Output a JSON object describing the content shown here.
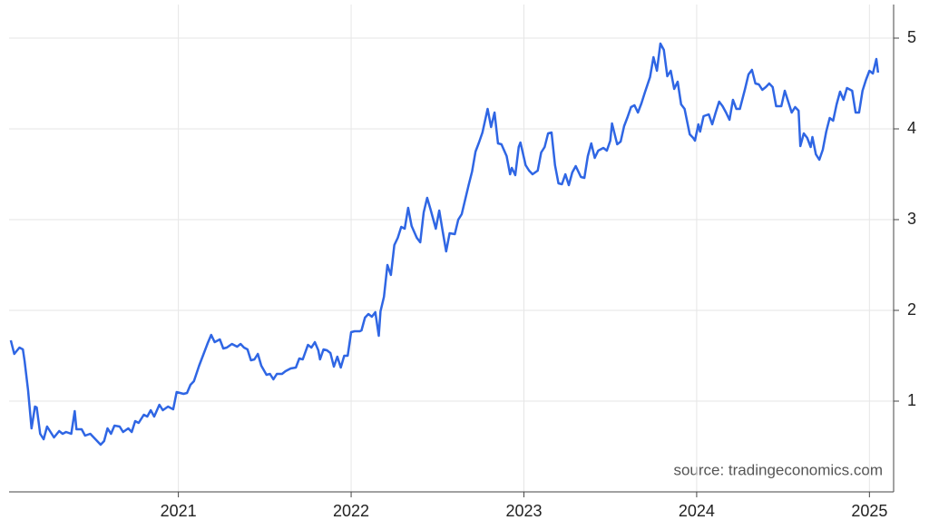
{
  "chart_data": {
    "type": "line",
    "source": "source: tradingeconomics.com",
    "color": "#2f66e4",
    "grid": true,
    "xlim": [
      2020.02,
      2025.14
    ],
    "xticks": [
      2021,
      2022,
      2023,
      2024,
      2025
    ],
    "ylim": [
      0,
      5.37
    ],
    "yticks": [
      1,
      2,
      3,
      4,
      5
    ],
    "x": [
      2020.03,
      2020.05,
      2020.08,
      2020.1,
      2020.11,
      2020.13,
      2020.15,
      2020.17,
      2020.18,
      2020.2,
      2020.22,
      2020.24,
      2020.28,
      2020.31,
      2020.33,
      2020.35,
      2020.38,
      2020.4,
      2020.41,
      2020.44,
      2020.46,
      2020.49,
      2020.52,
      2020.55,
      2020.57,
      2020.59,
      2020.61,
      2020.63,
      2020.66,
      2020.68,
      2020.71,
      2020.73,
      2020.75,
      2020.77,
      2020.8,
      2020.82,
      2020.84,
      2020.86,
      2020.89,
      2020.91,
      2020.94,
      2020.97,
      2020.99,
      2021.03,
      2021.05,
      2021.07,
      2021.09,
      2021.12,
      2021.15,
      2021.17,
      2021.19,
      2021.21,
      2021.24,
      2021.26,
      2021.28,
      2021.31,
      2021.34,
      2021.36,
      2021.38,
      2021.4,
      2021.42,
      2021.44,
      2021.46,
      2021.48,
      2021.51,
      2021.53,
      2021.55,
      2021.57,
      2021.6,
      2021.62,
      2021.65,
      2021.68,
      2021.7,
      2021.72,
      2021.75,
      2021.77,
      2021.79,
      2021.81,
      2021.82,
      2021.84,
      2021.86,
      2021.88,
      2021.9,
      2021.92,
      2021.94,
      2021.96,
      2021.98,
      2022.0,
      2022.02,
      2022.05,
      2022.06,
      2022.08,
      2022.1,
      2022.12,
      2022.14,
      2022.16,
      2022.17,
      2022.19,
      2022.21,
      2022.23,
      2022.25,
      2022.27,
      2022.29,
      2022.31,
      2022.33,
      2022.35,
      2022.38,
      2022.4,
      2022.42,
      2022.44,
      2022.46,
      2022.49,
      2022.51,
      2022.53,
      2022.55,
      2022.57,
      2022.6,
      2022.62,
      2022.64,
      2022.66,
      2022.68,
      2022.7,
      2022.72,
      2022.74,
      2022.76,
      2022.79,
      2022.81,
      2022.83,
      2022.85,
      2022.87,
      2022.9,
      2022.92,
      2022.93,
      2022.95,
      2022.97,
      2022.98,
      2023.01,
      2023.03,
      2023.05,
      2023.08,
      2023.1,
      2023.12,
      2023.14,
      2023.16,
      2023.18,
      2023.2,
      2023.22,
      2023.24,
      2023.26,
      2023.28,
      2023.3,
      2023.33,
      2023.35,
      2023.37,
      2023.39,
      2023.41,
      2023.43,
      2023.46,
      2023.48,
      2023.5,
      2023.51,
      2023.54,
      2023.56,
      2023.58,
      2023.6,
      2023.62,
      2023.64,
      2023.66,
      2023.68,
      2023.7,
      2023.73,
      2023.75,
      2023.77,
      2023.79,
      2023.81,
      2023.83,
      2023.85,
      2023.87,
      2023.89,
      2023.91,
      2023.93,
      2023.96,
      2023.98,
      2023.99,
      2024.01,
      2024.02,
      2024.04,
      2024.07,
      2024.09,
      2024.11,
      2024.13,
      2024.15,
      2024.17,
      2024.19,
      2024.21,
      2024.23,
      2024.25,
      2024.28,
      2024.3,
      2024.32,
      2024.34,
      2024.36,
      2024.38,
      2024.4,
      2024.42,
      2024.44,
      2024.46,
      2024.49,
      2024.51,
      2024.53,
      2024.55,
      2024.57,
      2024.59,
      2024.6,
      2024.62,
      2024.64,
      2024.66,
      2024.67,
      2024.69,
      2024.71,
      2024.73,
      2024.75,
      2024.77,
      2024.79,
      2024.81,
      2024.83,
      2024.85,
      2024.87,
      2024.9,
      2024.92,
      2024.94,
      2024.96,
      2024.98,
      2025.0,
      2025.02,
      2025.04,
      2025.05
    ],
    "values": [
      1.67,
      1.52,
      1.59,
      1.57,
      1.44,
      1.12,
      0.7,
      0.94,
      0.93,
      0.64,
      0.58,
      0.72,
      0.6,
      0.67,
      0.64,
      0.66,
      0.64,
      0.89,
      0.69,
      0.69,
      0.62,
      0.64,
      0.58,
      0.52,
      0.56,
      0.7,
      0.64,
      0.73,
      0.72,
      0.66,
      0.7,
      0.66,
      0.78,
      0.76,
      0.85,
      0.83,
      0.9,
      0.83,
      0.96,
      0.9,
      0.94,
      0.91,
      1.1,
      1.08,
      1.09,
      1.18,
      1.22,
      1.39,
      1.54,
      1.64,
      1.73,
      1.65,
      1.68,
      1.58,
      1.59,
      1.63,
      1.6,
      1.63,
      1.59,
      1.57,
      1.45,
      1.46,
      1.52,
      1.39,
      1.29,
      1.3,
      1.24,
      1.3,
      1.3,
      1.33,
      1.36,
      1.37,
      1.47,
      1.46,
      1.62,
      1.59,
      1.65,
      1.56,
      1.46,
      1.57,
      1.56,
      1.53,
      1.38,
      1.49,
      1.37,
      1.5,
      1.5,
      1.76,
      1.77,
      1.77,
      1.78,
      1.92,
      1.96,
      1.93,
      1.98,
      1.72,
      1.99,
      2.15,
      2.5,
      2.39,
      2.72,
      2.8,
      2.92,
      2.9,
      3.13,
      2.93,
      2.8,
      2.75,
      3.08,
      3.24,
      3.11,
      2.9,
      3.1,
      2.87,
      2.65,
      2.85,
      2.84,
      3.0,
      3.06,
      3.22,
      3.38,
      3.53,
      3.75,
      3.85,
      3.96,
      4.22,
      4.02,
      4.18,
      3.84,
      3.83,
      3.7,
      3.5,
      3.57,
      3.49,
      3.8,
      3.85,
      3.6,
      3.54,
      3.5,
      3.54,
      3.74,
      3.8,
      3.95,
      3.96,
      3.6,
      3.4,
      3.39,
      3.5,
      3.38,
      3.52,
      3.59,
      3.47,
      3.46,
      3.7,
      3.84,
      3.68,
      3.76,
      3.79,
      3.76,
      3.87,
      4.06,
      3.83,
      3.86,
      4.03,
      4.13,
      4.24,
      4.26,
      4.18,
      4.28,
      4.4,
      4.57,
      4.79,
      4.64,
      4.94,
      4.87,
      4.58,
      4.64,
      4.44,
      4.52,
      4.27,
      4.22,
      3.94,
      3.9,
      3.87,
      4.05,
      3.97,
      4.14,
      4.16,
      4.05,
      4.18,
      4.3,
      4.25,
      4.18,
      4.1,
      4.32,
      4.22,
      4.22,
      4.44,
      4.6,
      4.65,
      4.5,
      4.49,
      4.43,
      4.46,
      4.5,
      4.46,
      4.25,
      4.25,
      4.42,
      4.3,
      4.18,
      4.24,
      4.2,
      3.81,
      3.95,
      3.9,
      3.8,
      3.91,
      3.72,
      3.66,
      3.77,
      3.97,
      4.12,
      4.09,
      4.27,
      4.41,
      4.32,
      4.45,
      4.42,
      4.18,
      4.18,
      4.42,
      4.54,
      4.64,
      4.61,
      4.77,
      4.62
    ]
  }
}
